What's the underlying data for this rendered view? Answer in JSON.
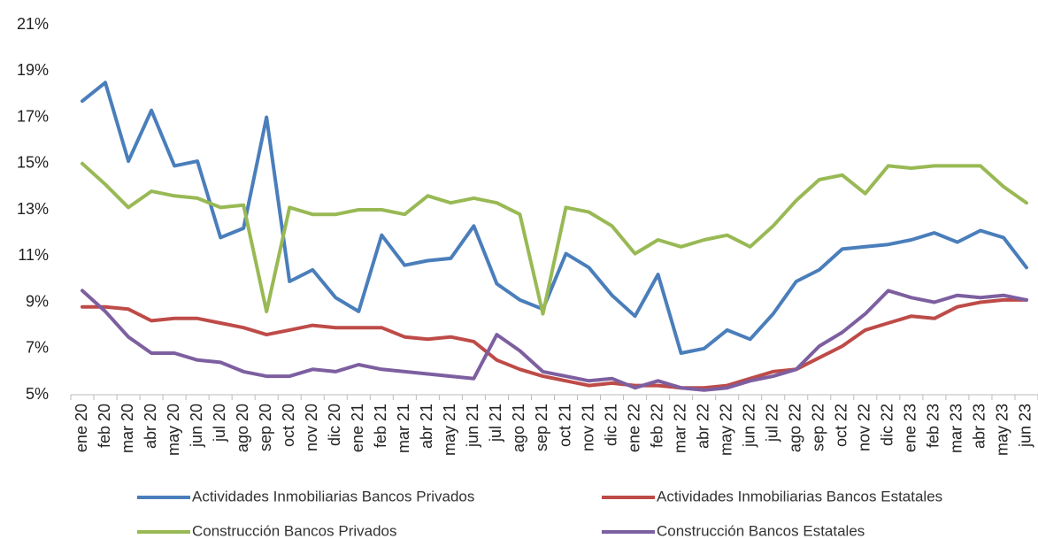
{
  "chart_data": {
    "type": "line",
    "categories": [
      "ene 20",
      "feb 20",
      "mar 20",
      "abr 20",
      "may 20",
      "jun 20",
      "jul 20",
      "ago 20",
      "sep 20",
      "oct 20",
      "nov 20",
      "dic 20",
      "ene 21",
      "feb 21",
      "mar 21",
      "abr 21",
      "may 21",
      "jun 21",
      "jul 21",
      "ago 21",
      "sep 21",
      "oct 21",
      "nov 21",
      "dic 21",
      "ene 22",
      "feb 22",
      "mar 22",
      "abr 22",
      "may 22",
      "jun 22",
      "jul 22",
      "ago 22",
      "sep 22",
      "oct 22",
      "nov 22",
      "dic 22",
      "ene 23",
      "feb 23",
      "mar 23",
      "abr 23",
      "may 23",
      "jun 23"
    ],
    "series": [
      {
        "name": "Actividades Inmobiliarias Bancos Privados",
        "color": "#4a7ebb",
        "values": [
          17.7,
          18.5,
          15.1,
          17.3,
          14.9,
          15.1,
          11.8,
          12.2,
          17.0,
          9.9,
          10.4,
          9.2,
          8.6,
          11.9,
          10.6,
          10.8,
          10.9,
          12.3,
          9.8,
          9.1,
          8.7,
          11.1,
          10.5,
          9.3,
          8.4,
          10.2,
          6.8,
          7.0,
          7.8,
          7.4,
          8.5,
          9.9,
          10.4,
          11.3,
          11.4,
          11.5,
          11.7,
          12.0,
          11.6,
          12.1,
          11.8,
          10.5
        ]
      },
      {
        "name": "Actividades Inmobiliarias Bancos Estatales",
        "color": "#be4b48",
        "values": [
          8.8,
          8.8,
          8.7,
          8.2,
          8.3,
          8.3,
          8.1,
          7.9,
          7.6,
          7.8,
          8.0,
          7.9,
          7.9,
          7.9,
          7.5,
          7.4,
          7.5,
          7.3,
          6.5,
          6.1,
          5.8,
          5.6,
          5.4,
          5.5,
          5.4,
          5.4,
          5.3,
          5.3,
          5.4,
          5.7,
          6.0,
          6.1,
          6.6,
          7.1,
          7.8,
          8.1,
          8.4,
          8.3,
          8.8,
          9.0,
          9.1,
          9.1
        ]
      },
      {
        "name": "Construcción Bancos Privados",
        "color": "#98b954",
        "values": [
          15.0,
          14.1,
          13.1,
          13.8,
          13.6,
          13.5,
          13.1,
          13.2,
          8.6,
          13.1,
          12.8,
          12.8,
          13.0,
          13.0,
          12.8,
          13.6,
          13.3,
          13.5,
          13.3,
          12.8,
          8.5,
          13.1,
          12.9,
          12.3,
          11.1,
          11.7,
          11.4,
          11.7,
          11.9,
          11.4,
          12.3,
          13.4,
          14.3,
          14.5,
          13.7,
          14.9,
          14.8,
          14.9,
          14.9,
          14.9,
          14.0,
          13.3
        ]
      },
      {
        "name": "Construcción Bancos Estatales",
        "color": "#7d5fa0",
        "values": [
          9.5,
          8.6,
          7.5,
          6.8,
          6.8,
          6.5,
          6.4,
          6.0,
          5.8,
          5.8,
          6.1,
          6.0,
          6.3,
          6.1,
          6.0,
          5.9,
          5.8,
          5.7,
          7.6,
          6.9,
          6.0,
          5.8,
          5.6,
          5.7,
          5.3,
          5.6,
          5.3,
          5.2,
          5.3,
          5.6,
          5.8,
          6.1,
          7.1,
          7.7,
          8.5,
          9.5,
          9.2,
          9.0,
          9.3,
          9.2,
          9.3,
          9.1
        ]
      }
    ],
    "ylim": [
      5,
      21
    ],
    "yticks": [
      {
        "value": 5,
        "label": "5%"
      },
      {
        "value": 7,
        "label": "7%"
      },
      {
        "value": 9,
        "label": "9%"
      },
      {
        "value": 11,
        "label": "11%"
      },
      {
        "value": 13,
        "label": "13%"
      },
      {
        "value": 15,
        "label": "15%"
      },
      {
        "value": 17,
        "label": "17%"
      },
      {
        "value": 19,
        "label": "19%"
      },
      {
        "value": 21,
        "label": "21%"
      }
    ],
    "grid": false
  }
}
